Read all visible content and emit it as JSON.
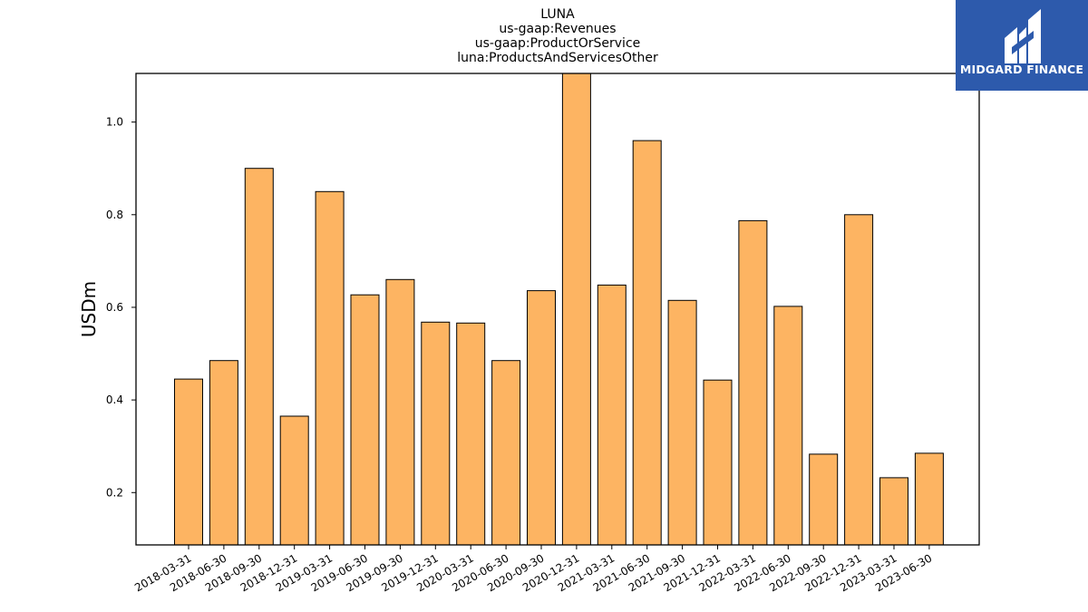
{
  "chart_data": {
    "type": "bar",
    "title_lines": [
      "LUNA",
      "us-gaap:Revenues",
      "us-gaap:ProductOrService",
      "luna:ProductsAndServicesOther"
    ],
    "xlabel": "",
    "ylabel": "USDm",
    "ylim": [
      0.087,
      1.105
    ],
    "yticks": [
      "0.2",
      "0.4",
      "0.6",
      "0.8",
      "1.0"
    ],
    "ytick_values": [
      0.2,
      0.4,
      0.6,
      0.8,
      1.0
    ],
    "categories": [
      "2018-03-31",
      "2018-06-30",
      "2018-09-30",
      "2018-12-31",
      "2019-03-31",
      "2019-06-30",
      "2019-09-30",
      "2019-12-31",
      "2020-03-31",
      "2020-06-30",
      "2020-09-30",
      "2020-12-31",
      "2021-03-31",
      "2021-06-30",
      "2021-09-30",
      "2021-12-31",
      "2022-03-31",
      "2022-06-30",
      "2022-09-30",
      "2022-12-31",
      "2023-03-31",
      "2023-06-30"
    ],
    "values": [
      0.445,
      0.485,
      0.9,
      0.365,
      0.85,
      0.627,
      0.66,
      0.568,
      0.566,
      0.485,
      0.636,
      1.105,
      0.648,
      0.96,
      0.615,
      0.443,
      0.787,
      0.602,
      0.283,
      0.8,
      0.232,
      0.285
    ],
    "bar_color": "#fdb462",
    "bar_edge_color": "#000000",
    "grid": false,
    "legend": "none"
  },
  "logo": {
    "text": "MIDGARD FINANCE",
    "background": "#2d5aac"
  }
}
